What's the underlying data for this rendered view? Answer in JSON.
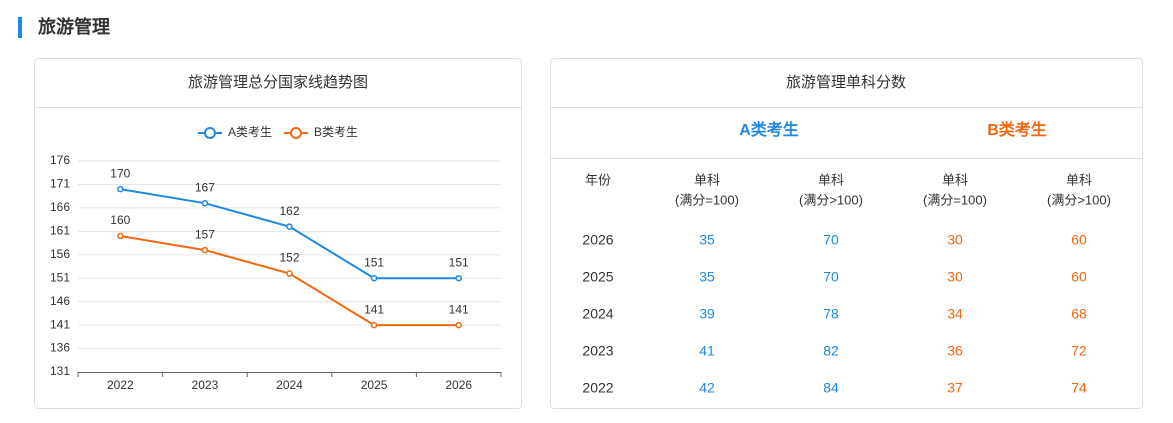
{
  "header": {
    "title": "旅游管理"
  },
  "chart_data": {
    "type": "line",
    "title": "旅游管理总分国家线趋势图",
    "categories": [
      "2022",
      "2023",
      "2024",
      "2025",
      "2026"
    ],
    "series": [
      {
        "name": "A类考生",
        "color": "#1e88e5",
        "values": [
          170,
          167,
          162,
          151,
          151
        ]
      },
      {
        "name": "B类考生",
        "color": "#f0680f",
        "values": [
          160,
          157,
          152,
          141,
          141
        ]
      }
    ],
    "ylim": [
      131,
      176
    ],
    "yticks": [
      131,
      136,
      141,
      146,
      151,
      156,
      161,
      166,
      171,
      176
    ],
    "grid": true,
    "legend": "top"
  },
  "table": {
    "title": "旅游管理单科分数",
    "groups": [
      {
        "name": "A类考生",
        "color": "#1e88e5"
      },
      {
        "name": "B类考生",
        "color": "#f0680f"
      }
    ],
    "columns": [
      [
        "年份"
      ],
      [
        "单科",
        "(满分=100)"
      ],
      [
        "单科",
        "(满分>100)"
      ],
      [
        "单科",
        "(满分=100)"
      ],
      [
        "单科",
        "(满分>100)"
      ]
    ],
    "rows": [
      [
        "2026",
        35,
        70,
        30,
        60
      ],
      [
        "2025",
        35,
        70,
        30,
        60
      ],
      [
        "2024",
        39,
        78,
        34,
        68
      ],
      [
        "2023",
        41,
        82,
        36,
        72
      ],
      [
        "2022",
        42,
        84,
        37,
        74
      ]
    ]
  }
}
